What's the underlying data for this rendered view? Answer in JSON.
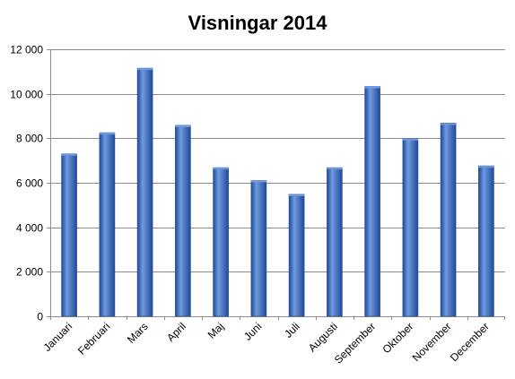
{
  "chart_data": {
    "type": "bar",
    "title": "Visningar 2014",
    "xlabel": "",
    "ylabel": "",
    "categories": [
      "Januari",
      "Februari",
      "Mars",
      "April",
      "Maj",
      "Juni",
      "Juli",
      "Augusti",
      "September",
      "Oktober",
      "November",
      "December"
    ],
    "values": [
      7300,
      8250,
      11150,
      8580,
      6680,
      6100,
      5480,
      6680,
      10330,
      7980,
      8680,
      6760
    ],
    "ylim": [
      0,
      12000
    ],
    "yticks": [
      0,
      2000,
      4000,
      6000,
      8000,
      10000,
      12000
    ],
    "ytick_labels": [
      "0",
      "2 000",
      "4 000",
      "6 000",
      "8 000",
      "10 000",
      "12 000"
    ],
    "grid": true,
    "legend": "none",
    "bar_color": "#3a6fc4",
    "bar_color_dark": "#1f4a96",
    "bar_color_light": "#6f9ae0"
  }
}
